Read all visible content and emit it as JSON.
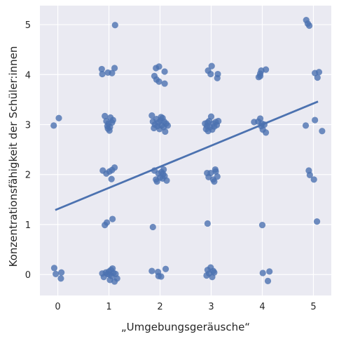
{
  "chart_data": {
    "type": "scatter",
    "xlabel": "„Umgebungsgeräusche“",
    "ylabel": "Konzentrationsfähigkeit der Schüler:innen",
    "xlim": [
      -0.35,
      5.35
    ],
    "ylim": [
      -0.42,
      5.38
    ],
    "x_ticks": [
      0,
      1,
      2,
      3,
      4,
      5
    ],
    "y_ticks": [
      0,
      1,
      2,
      3,
      4,
      5
    ],
    "grid": true,
    "background": "#EAEAF2",
    "grid_color": "#FFFFFF",
    "point_color": "#4C72B0",
    "line_color": "#4C72B0",
    "regression_line": {
      "x": [
        -0.05,
        5.09
      ],
      "y": [
        1.29,
        3.46
      ]
    },
    "points": [
      {
        "x": -0.08,
        "y": 2.98
      },
      {
        "x": 0.02,
        "y": 3.13
      },
      {
        "x": -0.07,
        "y": 0.13
      },
      {
        "x": -0.04,
        "y": 0.01
      },
      {
        "x": 0.07,
        "y": 0.04
      },
      {
        "x": 0.06,
        "y": -0.08
      },
      {
        "x": 1.12,
        "y": 4.99
      },
      {
        "x": 0.86,
        "y": 4.11
      },
      {
        "x": 0.87,
        "y": 4.01
      },
      {
        "x": 0.98,
        "y": 4.04
      },
      {
        "x": 1.06,
        "y": 4.03
      },
      {
        "x": 1.11,
        "y": 4.13
      },
      {
        "x": 0.92,
        "y": 3.17
      },
      {
        "x": 0.95,
        "y": 3.07
      },
      {
        "x": 0.97,
        "y": 2.97
      },
      {
        "x": 0.98,
        "y": 2.92
      },
      {
        "x": 1.01,
        "y": 2.88
      },
      {
        "x": 1.03,
        "y": 3.14
      },
      {
        "x": 1.06,
        "y": 3.04
      },
      {
        "x": 1.08,
        "y": 3.09
      },
      {
        "x": 0.99,
        "y": 3.02
      },
      {
        "x": 1.02,
        "y": 2.95
      },
      {
        "x": 0.88,
        "y": 2.08
      },
      {
        "x": 0.95,
        "y": 2.02
      },
      {
        "x": 1.01,
        "y": 2.06
      },
      {
        "x": 1.06,
        "y": 2.09
      },
      {
        "x": 1.11,
        "y": 2.14
      },
      {
        "x": 1.05,
        "y": 1.91
      },
      {
        "x": 0.92,
        "y": 0.99
      },
      {
        "x": 0.96,
        "y": 1.04
      },
      {
        "x": 1.07,
        "y": 1.11
      },
      {
        "x": 0.87,
        "y": 0.02
      },
      {
        "x": 0.9,
        "y": -0.05
      },
      {
        "x": 0.94,
        "y": 0.04
      },
      {
        "x": 0.97,
        "y": 0.01
      },
      {
        "x": 1.0,
        "y": 0.06
      },
      {
        "x": 1.02,
        "y": -0.11
      },
      {
        "x": 1.04,
        "y": 0.09
      },
      {
        "x": 1.05,
        "y": -0.03
      },
      {
        "x": 1.07,
        "y": 0.12
      },
      {
        "x": 1.09,
        "y": 0.03
      },
      {
        "x": 1.11,
        "y": -0.14
      },
      {
        "x": 1.13,
        "y": 0.01
      },
      {
        "x": 1.16,
        "y": -0.08
      },
      {
        "x": 1.01,
        "y": 0.0
      },
      {
        "x": 1.92,
        "y": 4.13
      },
      {
        "x": 1.98,
        "y": 4.16
      },
      {
        "x": 2.09,
        "y": 4.06
      },
      {
        "x": 1.89,
        "y": 3.97
      },
      {
        "x": 1.93,
        "y": 3.9
      },
      {
        "x": 1.98,
        "y": 3.86
      },
      {
        "x": 2.09,
        "y": 3.82
      },
      {
        "x": 1.84,
        "y": 3.18
      },
      {
        "x": 1.86,
        "y": 3.06
      },
      {
        "x": 1.88,
        "y": 2.93
      },
      {
        "x": 1.9,
        "y": 3.0
      },
      {
        "x": 1.93,
        "y": 3.11
      },
      {
        "x": 1.95,
        "y": 2.97
      },
      {
        "x": 1.97,
        "y": 3.04
      },
      {
        "x": 1.99,
        "y": 2.91
      },
      {
        "x": 2.01,
        "y": 3.08
      },
      {
        "x": 2.03,
        "y": 2.98
      },
      {
        "x": 2.05,
        "y": 3.13
      },
      {
        "x": 2.07,
        "y": 2.95
      },
      {
        "x": 2.08,
        "y": 3.06
      },
      {
        "x": 2.1,
        "y": 2.86
      },
      {
        "x": 2.12,
        "y": 3.02
      },
      {
        "x": 2.15,
        "y": 2.98
      },
      {
        "x": 2.02,
        "y": 3.15
      },
      {
        "x": 1.89,
        "y": 2.08
      },
      {
        "x": 1.92,
        "y": 1.9
      },
      {
        "x": 1.94,
        "y": 1.86
      },
      {
        "x": 1.97,
        "y": 2.02
      },
      {
        "x": 2.0,
        "y": 1.94
      },
      {
        "x": 2.03,
        "y": 2.05
      },
      {
        "x": 2.05,
        "y": 1.92
      },
      {
        "x": 2.07,
        "y": 2.1
      },
      {
        "x": 2.09,
        "y": 1.97
      },
      {
        "x": 2.13,
        "y": 1.88
      },
      {
        "x": 2.06,
        "y": 2.01
      },
      {
        "x": 1.86,
        "y": 0.95
      },
      {
        "x": 1.84,
        "y": 0.07
      },
      {
        "x": 1.96,
        "y": 0.05
      },
      {
        "x": 1.97,
        "y": -0.03
      },
      {
        "x": 2.02,
        "y": -0.04
      },
      {
        "x": 2.11,
        "y": 0.11
      },
      {
        "x": 2.94,
        "y": 4.08
      },
      {
        "x": 3.01,
        "y": 4.17
      },
      {
        "x": 2.99,
        "y": 4.01
      },
      {
        "x": 3.13,
        "y": 4.01
      },
      {
        "x": 3.12,
        "y": 3.93
      },
      {
        "x": 2.88,
        "y": 3.02
      },
      {
        "x": 2.9,
        "y": 2.91
      },
      {
        "x": 2.92,
        "y": 2.97
      },
      {
        "x": 2.94,
        "y": 2.87
      },
      {
        "x": 2.96,
        "y": 3.07
      },
      {
        "x": 2.98,
        "y": 2.95
      },
      {
        "x": 3.0,
        "y": 3.16
      },
      {
        "x": 3.02,
        "y": 2.9
      },
      {
        "x": 3.04,
        "y": 3.02
      },
      {
        "x": 3.06,
        "y": 2.96
      },
      {
        "x": 3.09,
        "y": 3.05
      },
      {
        "x": 3.11,
        "y": 2.99
      },
      {
        "x": 3.14,
        "y": 3.07
      },
      {
        "x": 2.93,
        "y": 3.04
      },
      {
        "x": 2.92,
        "y": 2.03
      },
      {
        "x": 2.95,
        "y": 1.95
      },
      {
        "x": 2.99,
        "y": 2.03
      },
      {
        "x": 3.04,
        "y": 1.9
      },
      {
        "x": 3.06,
        "y": 1.86
      },
      {
        "x": 3.09,
        "y": 2.06
      },
      {
        "x": 3.12,
        "y": 1.96
      },
      {
        "x": 3.08,
        "y": 2.1
      },
      {
        "x": 2.93,
        "y": 1.02
      },
      {
        "x": 2.91,
        "y": -0.02
      },
      {
        "x": 2.93,
        "y": 0.09
      },
      {
        "x": 2.96,
        "y": 0.02
      },
      {
        "x": 2.99,
        "y": 0.14
      },
      {
        "x": 3.02,
        "y": -0.05
      },
      {
        "x": 3.04,
        "y": 0.07
      },
      {
        "x": 3.06,
        "y": 0.04
      },
      {
        "x": 3.93,
        "y": 3.95
      },
      {
        "x": 3.96,
        "y": 4.02
      },
      {
        "x": 3.98,
        "y": 4.08
      },
      {
        "x": 4.07,
        "y": 4.1
      },
      {
        "x": 3.96,
        "y": 3.97
      },
      {
        "x": 3.84,
        "y": 3.05
      },
      {
        "x": 3.92,
        "y": 3.06
      },
      {
        "x": 3.96,
        "y": 3.12
      },
      {
        "x": 3.98,
        "y": 2.97
      },
      {
        "x": 4.01,
        "y": 2.9
      },
      {
        "x": 4.04,
        "y": 3.0
      },
      {
        "x": 4.07,
        "y": 2.84
      },
      {
        "x": 3.99,
        "y": 3.02
      },
      {
        "x": 4.0,
        "y": 0.99
      },
      {
        "x": 4.01,
        "y": 0.03
      },
      {
        "x": 4.14,
        "y": 0.06
      },
      {
        "x": 4.11,
        "y": -0.13
      },
      {
        "x": 4.86,
        "y": 5.09
      },
      {
        "x": 4.89,
        "y": 5.02
      },
      {
        "x": 4.92,
        "y": 4.98
      },
      {
        "x": 5.03,
        "y": 4.03
      },
      {
        "x": 5.08,
        "y": 3.94
      },
      {
        "x": 5.11,
        "y": 4.05
      },
      {
        "x": 4.85,
        "y": 2.98
      },
      {
        "x": 5.03,
        "y": 3.09
      },
      {
        "x": 5.17,
        "y": 2.87
      },
      {
        "x": 4.91,
        "y": 2.08
      },
      {
        "x": 4.93,
        "y": 1.99
      },
      {
        "x": 5.01,
        "y": 1.9
      },
      {
        "x": 5.07,
        "y": 1.06
      }
    ]
  }
}
